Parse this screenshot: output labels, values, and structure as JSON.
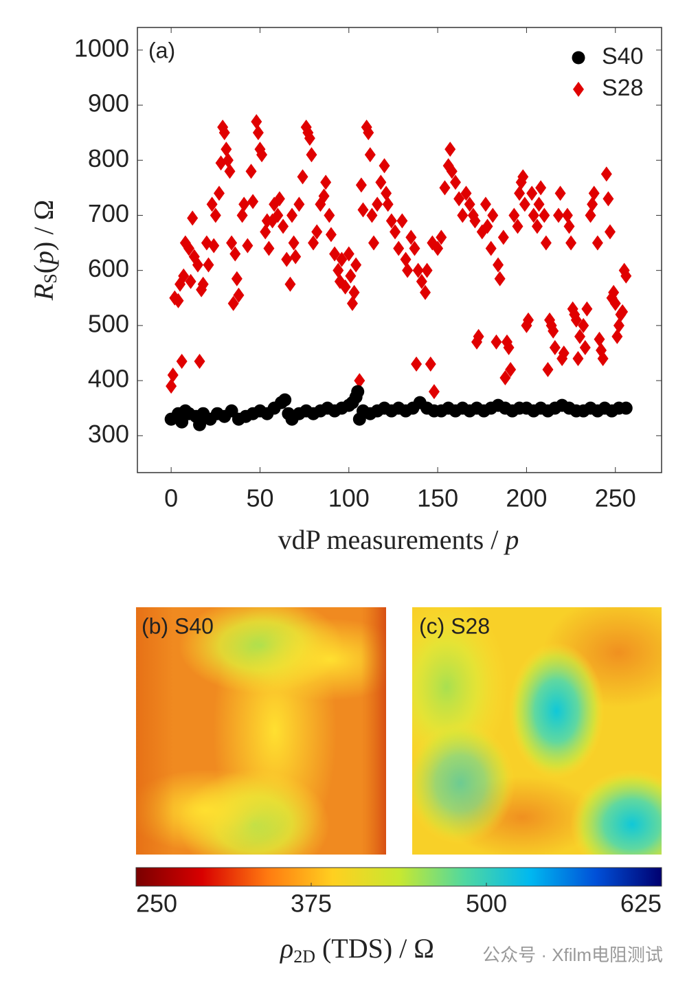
{
  "chart_data": [
    {
      "type": "scatter",
      "panel_label": "(a)",
      "xlabel": [
        "vdP measurements / ",
        "p"
      ],
      "ylabel": [
        "R",
        "S",
        "(",
        "p",
        ") / Ω"
      ],
      "xlim": [
        -19,
        276
      ],
      "ylim": [
        233,
        1041
      ],
      "xticks": [
        0,
        50,
        100,
        150,
        200,
        250
      ],
      "yticks": [
        300,
        400,
        500,
        600,
        700,
        800,
        900,
        1000
      ],
      "legend": "upper right",
      "series": [
        {
          "name": "S40",
          "color": "#000000",
          "marker": "circle",
          "x": [
            0,
            4,
            6,
            8,
            10,
            14,
            16,
            18,
            22,
            26,
            30,
            34,
            38,
            42,
            46,
            50,
            54,
            58,
            62,
            64,
            66,
            68,
            72,
            76,
            80,
            84,
            88,
            92,
            96,
            100,
            102,
            104,
            105,
            106,
            108,
            112,
            116,
            120,
            124,
            128,
            132,
            136,
            140,
            144,
            148,
            152,
            156,
            160,
            164,
            168,
            172,
            176,
            180,
            184,
            188,
            192,
            196,
            200,
            204,
            208,
            212,
            216,
            220,
            224,
            228,
            232,
            236,
            240,
            244,
            248,
            252,
            256
          ],
          "values": [
            330,
            340,
            325,
            345,
            340,
            335,
            320,
            340,
            330,
            340,
            335,
            345,
            330,
            335,
            340,
            345,
            340,
            350,
            360,
            365,
            340,
            330,
            340,
            345,
            340,
            345,
            350,
            345,
            350,
            355,
            360,
            370,
            380,
            330,
            345,
            340,
            345,
            350,
            345,
            350,
            345,
            350,
            360,
            350,
            345,
            345,
            350,
            345,
            350,
            345,
            350,
            345,
            350,
            355,
            350,
            345,
            350,
            350,
            345,
            350,
            345,
            350,
            355,
            350,
            345,
            345,
            350,
            345,
            350,
            345,
            350,
            350
          ]
        },
        {
          "name": "S28",
          "color": "#e00000",
          "marker": "diamond",
          "x": [
            0,
            1,
            2,
            4,
            5,
            6,
            7,
            8,
            10,
            11,
            12,
            13,
            15,
            16,
            17,
            18,
            20,
            21,
            23,
            24,
            25,
            27,
            28,
            29,
            30,
            31,
            32,
            33,
            34,
            35,
            36,
            37,
            38,
            40,
            41,
            43,
            45,
            46,
            48,
            49,
            50,
            51,
            53,
            54,
            55,
            57,
            58,
            60,
            61,
            63,
            65,
            67,
            68,
            69,
            70,
            72,
            74,
            76,
            77,
            78,
            79,
            80,
            82,
            84,
            86,
            87,
            89,
            90,
            92,
            94,
            95,
            96,
            98,
            100,
            101,
            102,
            103,
            104,
            106,
            107,
            108,
            110,
            111,
            112,
            113,
            114,
            116,
            118,
            120,
            121,
            122,
            124,
            126,
            128,
            130,
            132,
            133,
            135,
            137,
            138,
            139,
            141,
            143,
            144,
            146,
            147,
            148,
            150,
            152,
            154,
            156,
            157,
            158,
            160,
            162,
            164,
            166,
            168,
            170,
            171,
            172,
            173,
            175,
            177,
            178,
            180,
            181,
            183,
            184,
            185,
            187,
            188,
            189,
            190,
            191,
            193,
            195,
            196,
            197,
            198,
            199,
            200,
            201,
            203,
            204,
            206,
            207,
            208,
            210,
            211,
            212,
            213,
            214,
            215,
            216,
            218,
            219,
            220,
            221,
            223,
            224,
            225,
            226,
            227,
            228,
            229,
            230,
            232,
            233,
            234,
            236,
            237,
            238,
            240,
            241,
            242,
            243,
            245,
            246,
            247,
            248,
            249,
            250,
            251,
            252,
            253,
            254,
            255,
            256
          ],
          "values": [
            390,
            410,
            550,
            545,
            575,
            435,
            590,
            650,
            640,
            580,
            695,
            625,
            610,
            435,
            565,
            575,
            650,
            610,
            720,
            645,
            700,
            740,
            795,
            860,
            850,
            820,
            800,
            780,
            650,
            540,
            630,
            585,
            555,
            700,
            720,
            645,
            780,
            725,
            870,
            850,
            820,
            810,
            670,
            690,
            640,
            690,
            720,
            700,
            730,
            680,
            620,
            575,
            700,
            650,
            625,
            720,
            770,
            860,
            850,
            840,
            810,
            650,
            670,
            720,
            735,
            760,
            700,
            665,
            630,
            600,
            580,
            620,
            570,
            630,
            590,
            540,
            560,
            610,
            400,
            755,
            710,
            860,
            850,
            810,
            700,
            650,
            720,
            760,
            790,
            740,
            720,
            690,
            670,
            640,
            690,
            620,
            600,
            660,
            640,
            430,
            600,
            580,
            560,
            600,
            430,
            650,
            380,
            640,
            660,
            750,
            790,
            820,
            780,
            760,
            730,
            700,
            740,
            720,
            700,
            690,
            470,
            480,
            670,
            720,
            680,
            640,
            700,
            470,
            610,
            585,
            660,
            405,
            470,
            460,
            420,
            700,
            680,
            740,
            760,
            770,
            720,
            500,
            510,
            740,
            700,
            680,
            720,
            750,
            700,
            650,
            420,
            510,
            500,
            490,
            460,
            700,
            740,
            440,
            450,
            700,
            680,
            650,
            530,
            520,
            510,
            440,
            480,
            500,
            460,
            530,
            700,
            720,
            740,
            650,
            475,
            455,
            440,
            775,
            730,
            670,
            550,
            560,
            540,
            480,
            500,
            520,
            525,
            600,
            590
          ]
        }
      ]
    },
    {
      "type": "heatmap",
      "panels": [
        {
          "title": "(b) S40"
        },
        {
          "title": "(c) S28"
        }
      ],
      "colorbar": {
        "lim": [
          250,
          625
        ],
        "ticks": [
          250,
          375,
          500,
          625
        ],
        "colors": [
          "#7a0000",
          "#d80000",
          "#ff7a10",
          "#ffd020",
          "#c8e830",
          "#50d8a0",
          "#00b8f0",
          "#0050d8",
          "#000070"
        ],
        "label": [
          "ρ",
          "2D",
          " (TDS) / Ω"
        ]
      },
      "watermark": "公众号 · Xfilm电阻测试"
    }
  ]
}
